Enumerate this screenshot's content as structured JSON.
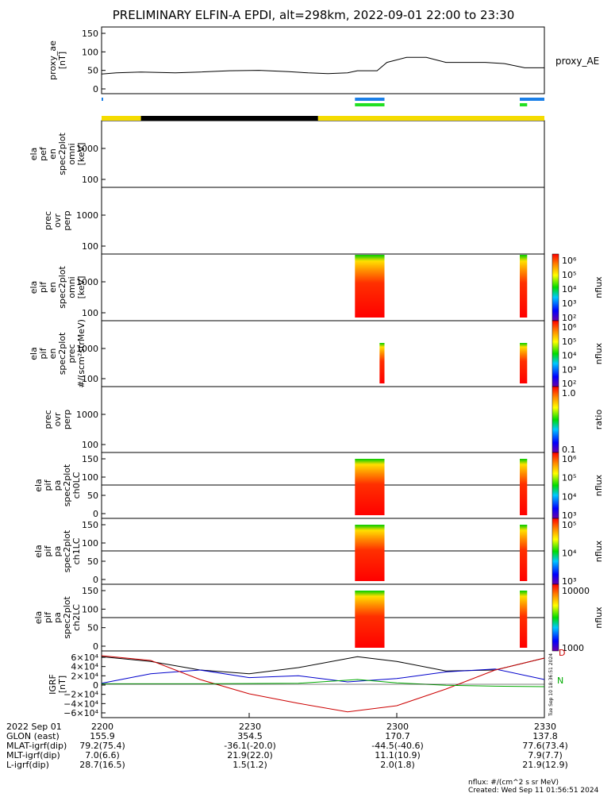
{
  "title": "PRELIMINARY ELFIN-A EPDI, alt=298km, 2022-09-01 22:00 to 23:30",
  "colors": {
    "trace": "#000000",
    "bar_blue": "#1a7fe8",
    "bar_green": "#22e022",
    "orbit_yellow": "#f5dc00",
    "orbit_black": "#000000",
    "igrf_x": "#000000",
    "igrf_y": "#0000cc",
    "igrf_z": "#cc0000",
    "igrf_green": "#00aa00"
  },
  "time_axis": {
    "range": [
      "22:00",
      "23:30"
    ],
    "ticks": [
      "2200",
      "2230",
      "2300",
      "2330"
    ],
    "tick_minutes": [
      0,
      30,
      60,
      90
    ]
  },
  "panels": [
    {
      "id": "proxy_ae",
      "ylabel": [
        "proxy_ae",
        "[nT]"
      ],
      "right_label": "proxy_AE",
      "yticks": [
        "150",
        "100",
        "50",
        "0"
      ]
    },
    {
      "id": "en_perp",
      "ylabel": [
        "ela",
        "pef",
        "en",
        "spec2plot",
        "omni",
        "[keV]"
      ],
      "yticks": [
        "1000",
        "100"
      ]
    },
    {
      "id": "ovr_perp",
      "ylabel": [
        "prec",
        "ovr",
        "perp"
      ],
      "yticks": [
        "1000",
        "100"
      ]
    },
    {
      "id": "pif_omni",
      "ylabel": [
        "ela",
        "pif",
        "en",
        "spec2plot",
        "omni",
        "[keV]"
      ],
      "yticks": [
        "1000",
        "100"
      ]
    },
    {
      "id": "pif_prec",
      "ylabel": [
        "ela",
        "pif",
        "en",
        "spec2plot",
        "prec",
        "#/(scm²strMeV)"
      ],
      "yticks": [
        "1000",
        "100"
      ]
    },
    {
      "id": "pif_ratio",
      "ylabel": [
        "prec",
        "ovr",
        "perp"
      ],
      "yticks": [
        "1000",
        "100"
      ]
    },
    {
      "id": "pa_ch0",
      "ylabel": [
        "ela",
        "pif",
        "pa",
        "spec2plot",
        "ch0LC"
      ],
      "yticks": [
        "150",
        "100",
        "50",
        "0"
      ]
    },
    {
      "id": "pa_ch1",
      "ylabel": [
        "ela",
        "pif",
        "pa",
        "spec2plot",
        "ch1LC"
      ],
      "yticks": [
        "150",
        "100",
        "50",
        "0"
      ]
    },
    {
      "id": "pa_ch2",
      "ylabel": [
        "ela",
        "pif",
        "pa",
        "spec2plot",
        "ch2LC"
      ],
      "yticks": [
        "150",
        "100",
        "50",
        "0"
      ]
    },
    {
      "id": "igrf",
      "ylabel": [
        "IGRF",
        "[nT]"
      ],
      "yticks": [
        "6×10⁴",
        "4×10⁴",
        "2×10⁴",
        "0",
        "−2×10⁴",
        "−4×10⁴",
        "−6×10⁴"
      ]
    }
  ],
  "colorbars": [
    {
      "label": "nflux",
      "ticks": [
        "10⁶",
        "10⁵",
        "10⁴",
        "10³",
        "10²"
      ]
    },
    {
      "label": "nflux",
      "ticks": [
        "10⁶",
        "10⁵",
        "10⁴",
        "10³",
        "10²"
      ]
    },
    {
      "label": "ratio",
      "ticks": [
        "1.0",
        "0.1"
      ]
    },
    {
      "label": "nflux",
      "ticks": [
        "10⁶",
        "10⁵",
        "10⁴",
        "10³"
      ]
    },
    {
      "label": "nflux",
      "ticks": [
        "10⁵",
        "10⁴",
        "10³"
      ]
    },
    {
      "label": "nflux",
      "ticks": [
        "10000",
        "1000"
      ]
    }
  ],
  "igrf_extras": {
    "red_label": "D",
    "right_label": "N",
    "vertical_stamp": "Tue Sep 10 18:36:51 2024"
  },
  "footer": {
    "rows": [
      {
        "label": "2022 Sep 01",
        "values": [
          "2200",
          "2230",
          "2300",
          "2330"
        ]
      },
      {
        "label": "GLON (east)",
        "values": [
          "155.9",
          "354.5",
          "170.7",
          "137.8"
        ]
      },
      {
        "label": "MLAT-igrf(dip)",
        "values": [
          "79.2(75.4)",
          "-36.1(-20.0)",
          "-44.5(-40.6)",
          "77.6(73.4)"
        ]
      },
      {
        "label": "MLT-igrf(dip)",
        "values": [
          "7.0(6.6)",
          "21.9(22.0)",
          "11.1(10.9)",
          "7.9(7.7)"
        ]
      },
      {
        "label": "L-igrf(dip)",
        "values": [
          "28.7(16.5)",
          "1.5(1.2)",
          "2.0(1.8)",
          "21.9(12.9)"
        ]
      }
    ],
    "units_note": "nflux: #/(cm^2 s sr MeV)",
    "created": "Created: Wed Sep 11 01:56:51 2024"
  },
  "chart_data": {
    "type": "line",
    "title": "PRELIMINARY ELFIN-A EPDI, alt=298km, 2022-09-01 22:00 to 23:30",
    "x_units": "minutes after 22:00",
    "xlim": [
      0,
      90
    ],
    "series": [
      {
        "name": "proxy_AE",
        "ylim": [
          0,
          160
        ],
        "x": [
          0,
          3,
          8,
          15,
          20,
          26,
          32,
          38,
          42,
          46,
          50,
          52,
          56,
          58,
          62,
          66,
          70,
          74,
          78,
          82,
          86,
          90
        ],
        "y": [
          47,
          50,
          52,
          50,
          52,
          55,
          56,
          53,
          50,
          48,
          50,
          55,
          55,
          75,
          87,
          87,
          75,
          75,
          75,
          72,
          62,
          62
        ]
      },
      {
        "name": "IGRF black",
        "ylim": [
          -70000,
          70000
        ],
        "x": [
          0,
          10,
          20,
          30,
          40,
          52,
          60,
          70,
          80,
          90
        ],
        "y": [
          58000,
          48000,
          30000,
          22000,
          35000,
          58000,
          48000,
          28000,
          30000,
          55000
        ]
      },
      {
        "name": "IGRF blue",
        "ylim": [
          -70000,
          70000
        ],
        "x": [
          0,
          10,
          20,
          30,
          40,
          50,
          60,
          70,
          80,
          90
        ],
        "y": [
          2000,
          22000,
          30000,
          14000,
          18000,
          5000,
          12000,
          26000,
          32000,
          10000
        ]
      },
      {
        "name": "IGRF D",
        "ylim": [
          -70000,
          70000
        ],
        "x": [
          0,
          10,
          20,
          30,
          40,
          50,
          60,
          70,
          80,
          90
        ],
        "y": [
          60000,
          50000,
          10000,
          -20000,
          -40000,
          -58000,
          -45000,
          -10000,
          30000,
          55000
        ]
      },
      {
        "name": "IGRF green",
        "ylim": [
          -70000,
          70000
        ],
        "x": [
          0,
          20,
          40,
          52,
          60,
          70,
          80,
          90
        ],
        "y": [
          1000,
          1000,
          2000,
          10000,
          3000,
          -2000,
          -4000,
          -5000
        ]
      }
    ],
    "science_zones": [
      {
        "start": 51.5,
        "end": 57.5,
        "bar": "blue"
      },
      {
        "start": 51.5,
        "end": 57.5,
        "bar": "green"
      },
      {
        "start": 85,
        "end": 90,
        "bar": "blue"
      },
      {
        "start": 85,
        "end": 86.5,
        "bar": "green"
      }
    ],
    "orbit_bar": [
      {
        "start": 0,
        "end": 8,
        "color": "yellow"
      },
      {
        "start": 8,
        "end": 44,
        "color": "black"
      },
      {
        "start": 44,
        "end": 90,
        "color": "yellow"
      }
    ],
    "spectrogram_times": [
      {
        "panel": "pif_omni",
        "start": 51.5,
        "end": 57.5
      },
      {
        "panel": "pif_omni",
        "start": 85,
        "end": 86.5
      },
      {
        "panel": "pif_prec",
        "start": 56.5,
        "end": 57.5
      },
      {
        "panel": "pif_prec",
        "start": 85,
        "end": 86.5
      },
      {
        "panel": "pa_ch0",
        "start": 51.5,
        "end": 57.5
      },
      {
        "panel": "pa_ch0",
        "start": 85,
        "end": 86.5
      },
      {
        "panel": "pa_ch1",
        "start": 51.5,
        "end": 57.5
      },
      {
        "panel": "pa_ch1",
        "start": 85,
        "end": 86.5
      },
      {
        "panel": "pa_ch2",
        "start": 51.5,
        "end": 57.5
      },
      {
        "panel": "pa_ch2",
        "start": 85,
        "end": 86.5
      }
    ]
  }
}
